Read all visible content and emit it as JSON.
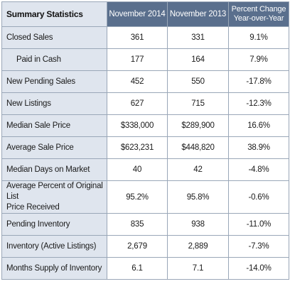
{
  "header": {
    "title": "Summary Statistics",
    "col1": "November 2014",
    "col2": "November 2013",
    "col3_line1": "Percent Change",
    "col3_line2": "Year-over-Year"
  },
  "rows": [
    {
      "label": "Closed Sales",
      "nov2014": "361",
      "nov2013": "331",
      "change": "9.1%"
    },
    {
      "label": "Paid in Cash",
      "nov2014": "177",
      "nov2013": "164",
      "change": "7.9%"
    },
    {
      "label": "New Pending Sales",
      "nov2014": "452",
      "nov2013": "550",
      "change": "-17.8%"
    },
    {
      "label": "New Listings",
      "nov2014": "627",
      "nov2013": "715",
      "change": "-12.3%"
    },
    {
      "label": "Median Sale Price",
      "nov2014": "$338,000",
      "nov2013": "$289,900",
      "change": "16.6%"
    },
    {
      "label": "Average Sale Price",
      "nov2014": "$623,231",
      "nov2013": "$448,820",
      "change": "38.9%"
    },
    {
      "label": "Median Days on Market",
      "nov2014": "40",
      "nov2013": "42",
      "change": "-4.8%"
    },
    {
      "label_line1": "Average Percent of Original List",
      "label_line2": "Price Received",
      "nov2014": "95.2%",
      "nov2013": "95.8%",
      "change": "-0.6%"
    },
    {
      "label": "Pending Inventory",
      "nov2014": "835",
      "nov2013": "938",
      "change": "-11.0%"
    },
    {
      "label": "Inventory (Active Listings)",
      "nov2014": "2,679",
      "nov2013": "2,889",
      "change": "-7.3%"
    },
    {
      "label": "Months Supply of Inventory",
      "nov2014": "6.1",
      "nov2013": "7.1",
      "change": "-14.0%"
    }
  ]
}
